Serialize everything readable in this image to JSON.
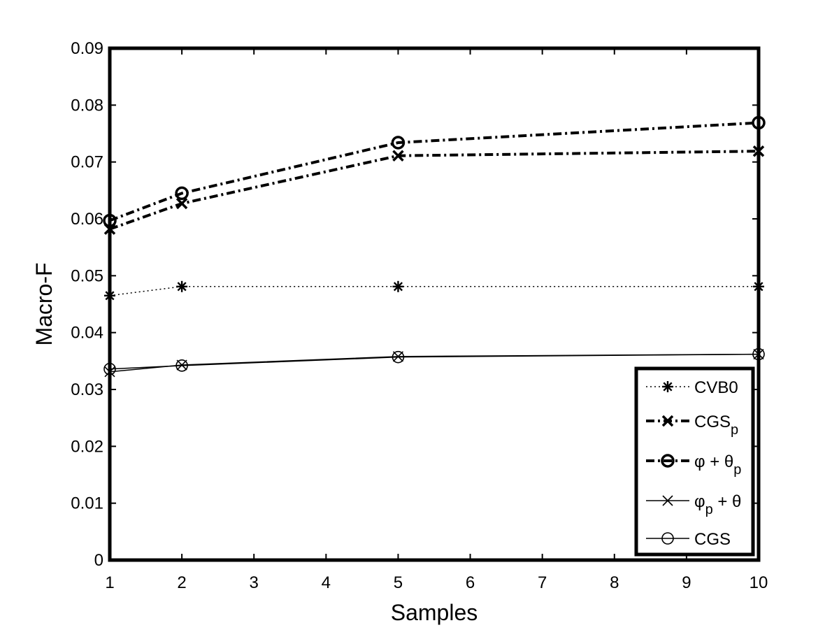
{
  "chart_data": {
    "type": "line",
    "title": "",
    "xlabel": "Samples",
    "ylabel": "Macro-F",
    "xlim": [
      1,
      10
    ],
    "ylim": [
      0,
      0.09
    ],
    "x_ticks": [
      1,
      2,
      3,
      4,
      5,
      6,
      7,
      8,
      9,
      10
    ],
    "x_tick_labels": [
      "1",
      "2",
      "3",
      "4",
      "5",
      "6",
      "7",
      "8",
      "9",
      "10"
    ],
    "y_ticks": [
      0,
      0.01,
      0.02,
      0.03,
      0.04,
      0.05,
      0.06,
      0.07,
      0.08,
      0.09
    ],
    "y_tick_labels": [
      "0",
      "0.01",
      "0.02",
      "0.03",
      "0.04",
      "0.05",
      "0.06",
      "0.07",
      "0.08",
      "0.09"
    ],
    "grid": false,
    "legend_position": "bottom-right",
    "x": [
      1,
      2,
      5,
      10
    ],
    "series": [
      {
        "name": "CVB0",
        "label_main": "CVB0",
        "label_sub": "",
        "label_tail": "",
        "marker": "asterisk",
        "line": "dotted",
        "weight": "thin",
        "values": [
          0.0465,
          0.0481,
          0.0481,
          0.0481
        ]
      },
      {
        "name": "CGSp",
        "label_main": "CGS",
        "label_sub": "p",
        "label_tail": "",
        "marker": "x",
        "line": "dashdot",
        "weight": "bold",
        "values": [
          0.0582,
          0.0627,
          0.0711,
          0.0719
        ]
      },
      {
        "name": "φ + θp",
        "label_main": "φ + θ",
        "label_sub": "p",
        "label_tail": "",
        "marker": "circle",
        "line": "dashdot",
        "weight": "bold",
        "values": [
          0.0597,
          0.0645,
          0.0734,
          0.0769
        ]
      },
      {
        "name": "φp + θ",
        "label_main": "φ",
        "label_sub": "p",
        "label_tail": " + θ",
        "marker": "x",
        "line": "solid",
        "weight": "thin",
        "values": [
          0.0331,
          0.0343,
          0.0358,
          0.0362
        ]
      },
      {
        "name": "CGS",
        "label_main": "CGS",
        "label_sub": "",
        "label_tail": "",
        "marker": "circle",
        "line": "solid",
        "weight": "thin",
        "values": [
          0.0336,
          0.0342,
          0.0357,
          0.0362
        ]
      }
    ]
  }
}
